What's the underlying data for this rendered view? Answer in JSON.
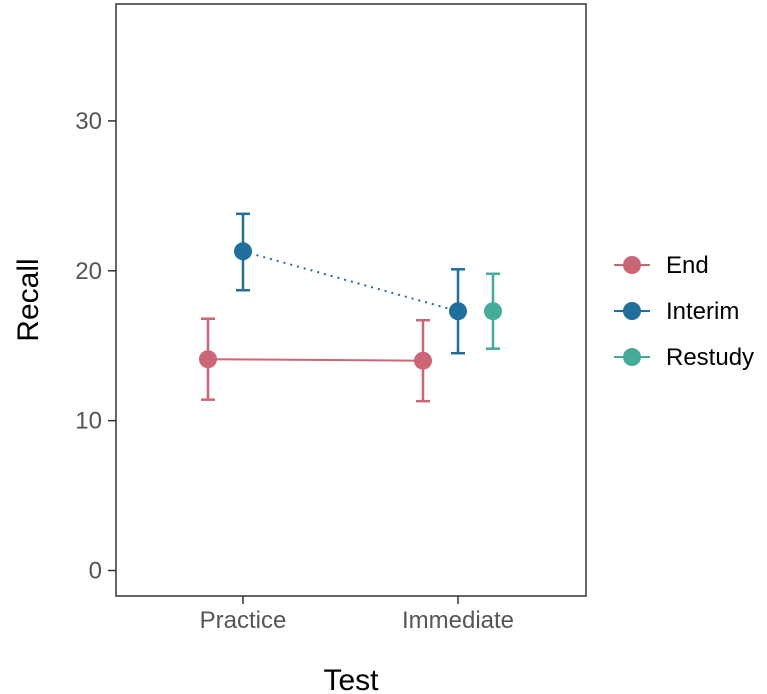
{
  "chart_data": {
    "type": "scatter",
    "title": "",
    "xlabel": "Test",
    "ylabel": "Recall",
    "categories": [
      "Practice",
      "Immediate"
    ],
    "ylim": [
      -1.7,
      37.8
    ],
    "yticks": [
      0,
      10,
      20,
      30
    ],
    "grid": false,
    "legend_position": "right",
    "series": [
      {
        "name": "End",
        "color": "#cc6677",
        "line": "solid",
        "points": [
          {
            "x": "Practice",
            "y": 14.1,
            "lo": 11.4,
            "hi": 16.8
          },
          {
            "x": "Immediate",
            "y": 14.0,
            "lo": 11.3,
            "hi": 16.7
          }
        ]
      },
      {
        "name": "Interim",
        "color": "#1f6e9c",
        "line": "dotted",
        "points": [
          {
            "x": "Practice",
            "y": 21.3,
            "lo": 18.7,
            "hi": 23.8
          },
          {
            "x": "Immediate",
            "y": 17.3,
            "lo": 14.5,
            "hi": 20.1
          }
        ]
      },
      {
        "name": "Restudy",
        "color": "#44aa99",
        "line": "none",
        "points": [
          {
            "x": "Immediate",
            "y": 17.3,
            "lo": 14.8,
            "hi": 19.8
          }
        ]
      }
    ]
  }
}
